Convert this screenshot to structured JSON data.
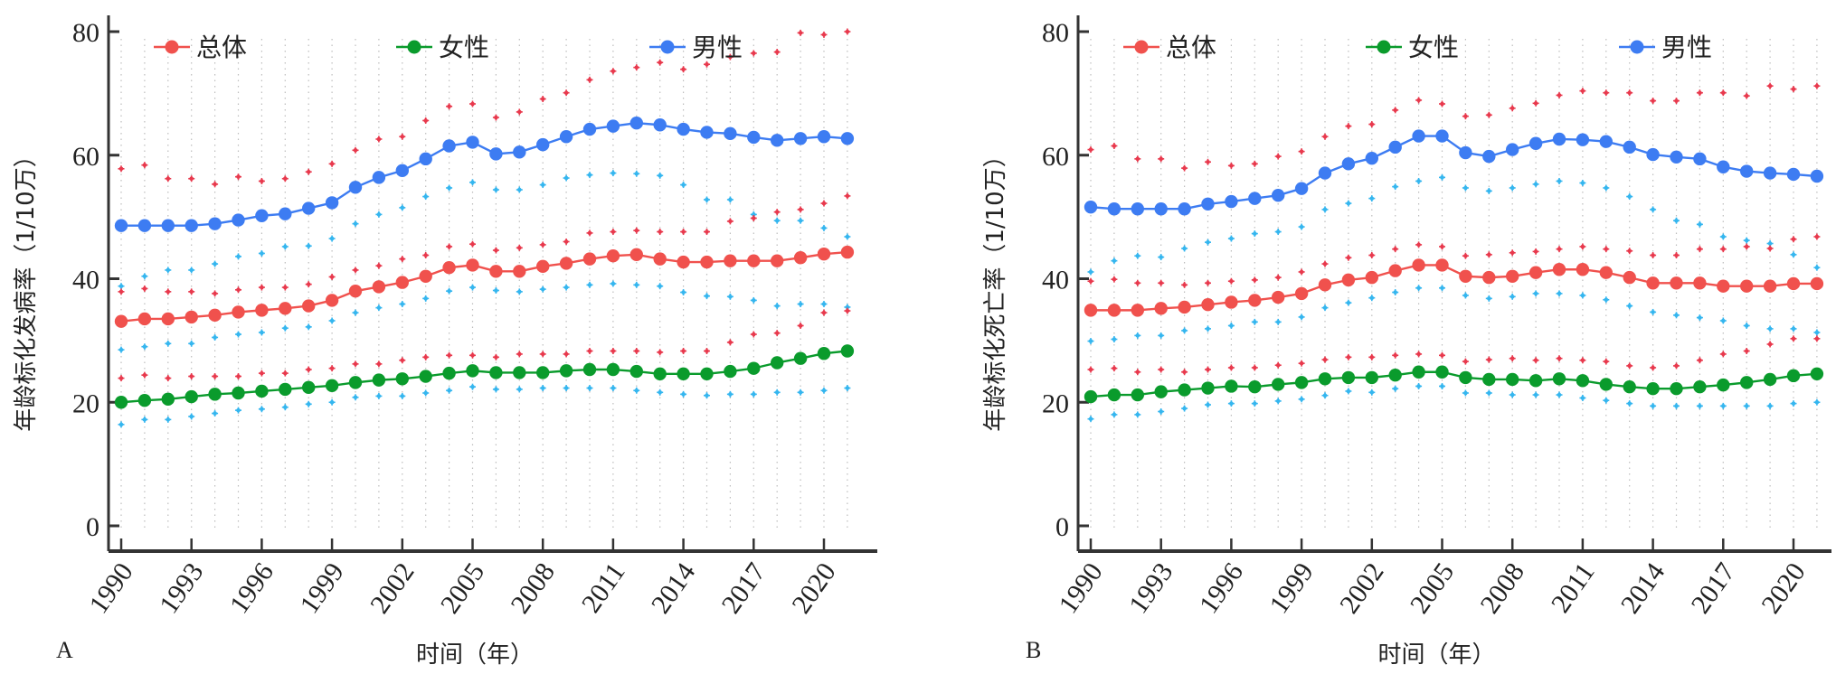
{
  "chart_data": [
    {
      "panel": "A",
      "type": "line",
      "title": "",
      "xlabel": "时间（年）",
      "ylabel": "年龄标化发病率（1/10万）",
      "ylim": [
        0,
        80
      ],
      "yticks": [
        "0",
        "20",
        "40",
        "60",
        "80"
      ],
      "xticks": [
        "1990",
        "1993",
        "1996",
        "1999",
        "2002",
        "2005",
        "2008",
        "2011",
        "2014",
        "2017",
        "2020"
      ],
      "grid": "vertical dotted",
      "legend": "top-left, horizontal",
      "x": [
        1990,
        1991,
        1992,
        1993,
        1994,
        1995,
        1996,
        1997,
        1998,
        1999,
        2000,
        2001,
        2002,
        2003,
        2004,
        2005,
        2006,
        2007,
        2008,
        2009,
        2010,
        2011,
        2012,
        2013,
        2014,
        2015,
        2016,
        2017,
        2018,
        2019,
        2020,
        2021
      ],
      "series": [
        {
          "name": "总体",
          "color": "#f0514d",
          "values": [
            33.1,
            33.5,
            33.5,
            33.8,
            34.1,
            34.6,
            34.9,
            35.2,
            35.6,
            36.5,
            38.0,
            38.7,
            39.4,
            40.4,
            41.8,
            42.2,
            41.2,
            41.2,
            42.0,
            42.5,
            43.2,
            43.7,
            43.9,
            43.2,
            42.7,
            42.7,
            42.9,
            42.9,
            42.9,
            43.4,
            44.0,
            44.3
          ]
        },
        {
          "name": "女性",
          "color": "#0a9b2c",
          "values": [
            20.0,
            20.3,
            20.5,
            20.9,
            21.3,
            21.5,
            21.8,
            22.1,
            22.4,
            22.7,
            23.2,
            23.6,
            23.8,
            24.2,
            24.7,
            25.1,
            24.8,
            24.8,
            24.8,
            25.1,
            25.3,
            25.3,
            25.0,
            24.6,
            24.6,
            24.6,
            25.0,
            25.5,
            26.4,
            27.1,
            27.9,
            28.3
          ]
        },
        {
          "name": "男性",
          "color": "#3d7cf2",
          "values": [
            48.6,
            48.6,
            48.6,
            48.6,
            48.9,
            49.5,
            50.2,
            50.5,
            51.4,
            52.3,
            54.8,
            56.4,
            57.5,
            59.4,
            61.5,
            62.1,
            60.2,
            60.5,
            61.7,
            63.0,
            64.2,
            64.7,
            65.2,
            64.9,
            64.2,
            63.7,
            63.5,
            62.9,
            62.4,
            62.7,
            63.0,
            62.7
          ]
        }
      ],
      "uncertainty_marks": [
        {
          "color": "#e8394d",
          "values": [
            57.8,
            58.4,
            56.2,
            56.2,
            55.3,
            56.5,
            55.8,
            56.2,
            57.3,
            58.6,
            60.8,
            62.6,
            63.0,
            65.6,
            67.9,
            68.3,
            66.1,
            67.0,
            69.1,
            70.1,
            72.2,
            73.6,
            74.2,
            75.0,
            73.9,
            74.7,
            75.9,
            76.5,
            76.7,
            79.8,
            79.5,
            80.0
          ]
        },
        {
          "color": "#35b6ef",
          "values": [
            38.8,
            40.4,
            41.4,
            41.4,
            42.4,
            43.6,
            44.1,
            45.2,
            45.3,
            46.5,
            48.9,
            50.4,
            51.5,
            53.3,
            54.7,
            55.6,
            54.4,
            54.4,
            55.2,
            56.3,
            56.8,
            57.1,
            57.0,
            56.7,
            55.2,
            52.8,
            52.8,
            50.4,
            49.4,
            49.4,
            48.2,
            46.8
          ]
        },
        {
          "color": "#e8394d",
          "values": [
            37.9,
            38.4,
            37.9,
            37.9,
            37.6,
            38.2,
            38.6,
            38.6,
            39.1,
            40.3,
            41.4,
            42.1,
            43.2,
            43.8,
            45.2,
            45.6,
            44.6,
            45.0,
            45.5,
            46.0,
            47.4,
            47.6,
            47.8,
            47.6,
            47.6,
            47.6,
            49.3,
            49.8,
            50.8,
            51.2,
            52.2,
            53.4
          ]
        },
        {
          "color": "#35b6ef",
          "values": [
            28.5,
            29.0,
            29.5,
            29.5,
            30.5,
            31.0,
            31.3,
            32.0,
            32.2,
            33.2,
            34.5,
            35.3,
            35.9,
            36.8,
            38.0,
            38.6,
            38.1,
            37.9,
            38.3,
            38.6,
            39.0,
            39.2,
            39.0,
            38.8,
            37.8,
            37.2,
            37.1,
            36.5,
            35.6,
            35.9,
            35.9,
            35.4
          ]
        },
        {
          "color": "#e8394d",
          "values": [
            23.9,
            24.4,
            23.9,
            24.2,
            24.2,
            24.2,
            24.7,
            24.7,
            25.3,
            25.5,
            26.2,
            26.2,
            26.8,
            27.3,
            27.6,
            27.6,
            27.3,
            27.8,
            27.8,
            27.8,
            28.3,
            28.3,
            28.3,
            28.1,
            28.3,
            28.3,
            29.7,
            31.0,
            31.2,
            32.4,
            34.5,
            34.8
          ]
        },
        {
          "color": "#35b6ef",
          "values": [
            16.4,
            17.2,
            17.2,
            17.7,
            18.2,
            18.7,
            18.9,
            19.2,
            19.7,
            20.0,
            20.8,
            21.0,
            21.0,
            21.5,
            21.9,
            22.5,
            22.1,
            22.1,
            22.3,
            22.3,
            22.3,
            22.3,
            21.9,
            21.6,
            21.3,
            21.1,
            21.3,
            21.3,
            21.6,
            21.6,
            21.9,
            22.3
          ]
        }
      ]
    },
    {
      "panel": "B",
      "type": "line",
      "title": "",
      "xlabel": "时间（年）",
      "ylabel": "年龄标化死亡率（1/10万）",
      "ylim": [
        0,
        80
      ],
      "yticks": [
        "0",
        "20",
        "40",
        "60",
        "80"
      ],
      "xticks": [
        "1990",
        "1993",
        "1996",
        "1999",
        "2002",
        "2005",
        "2008",
        "2011",
        "2014",
        "2017",
        "2020"
      ],
      "grid": "vertical dotted",
      "legend": "top-left, horizontal",
      "x": [
        1990,
        1991,
        1992,
        1993,
        1994,
        1995,
        1996,
        1997,
        1998,
        1999,
        2000,
        2001,
        2002,
        2003,
        2004,
        2005,
        2006,
        2007,
        2008,
        2009,
        2010,
        2011,
        2012,
        2013,
        2014,
        2015,
        2016,
        2017,
        2018,
        2019,
        2020,
        2021
      ],
      "series": [
        {
          "name": "总体",
          "color": "#f0514d",
          "values": [
            34.9,
            34.9,
            34.9,
            35.2,
            35.4,
            35.8,
            36.2,
            36.5,
            37.0,
            37.6,
            39.0,
            39.8,
            40.2,
            41.3,
            42.2,
            42.2,
            40.4,
            40.2,
            40.4,
            41.0,
            41.5,
            41.5,
            41.0,
            40.2,
            39.3,
            39.3,
            39.3,
            38.8,
            38.8,
            38.8,
            39.2,
            39.2
          ]
        },
        {
          "name": "女性",
          "color": "#0a9b2c",
          "values": [
            20.9,
            21.2,
            21.2,
            21.7,
            22.0,
            22.3,
            22.6,
            22.5,
            22.9,
            23.2,
            23.8,
            24.0,
            24.0,
            24.4,
            24.9,
            24.9,
            24.0,
            23.7,
            23.7,
            23.5,
            23.8,
            23.5,
            22.9,
            22.5,
            22.2,
            22.2,
            22.5,
            22.8,
            23.2,
            23.7,
            24.3,
            24.6
          ]
        },
        {
          "name": "男性",
          "color": "#3d7cf2",
          "values": [
            51.6,
            51.3,
            51.3,
            51.3,
            51.3,
            52.1,
            52.5,
            53.0,
            53.5,
            54.6,
            57.1,
            58.6,
            59.5,
            61.3,
            63.1,
            63.1,
            60.4,
            59.8,
            60.9,
            61.9,
            62.6,
            62.5,
            62.2,
            61.3,
            60.1,
            59.7,
            59.4,
            58.1,
            57.4,
            57.1,
            56.9,
            56.6
          ]
        }
      ],
      "uncertainty_marks": [
        {
          "color": "#e8394d",
          "values": [
            60.9,
            61.5,
            59.4,
            59.4,
            57.9,
            58.9,
            58.3,
            58.6,
            59.8,
            60.6,
            63.0,
            64.7,
            65.0,
            67.3,
            68.9,
            68.3,
            66.3,
            66.5,
            67.6,
            68.4,
            69.7,
            70.4,
            70.1,
            70.1,
            68.8,
            68.8,
            70.1,
            70.1,
            69.6,
            71.2,
            70.7,
            71.2
          ]
        },
        {
          "color": "#35b6ef",
          "values": [
            41.1,
            42.9,
            43.7,
            43.5,
            44.9,
            45.9,
            46.5,
            47.3,
            47.6,
            48.4,
            51.2,
            52.2,
            53.0,
            54.9,
            55.8,
            56.4,
            54.7,
            54.2,
            54.7,
            55.3,
            55.8,
            55.5,
            54.7,
            53.3,
            51.2,
            49.4,
            48.8,
            46.8,
            46.2,
            45.7,
            43.9,
            41.8
          ]
        },
        {
          "color": "#e8394d",
          "values": [
            39.6,
            39.9,
            39.3,
            39.3,
            39.0,
            39.3,
            39.6,
            39.8,
            40.2,
            41.1,
            42.4,
            43.4,
            43.8,
            44.8,
            45.5,
            45.2,
            43.7,
            43.9,
            44.2,
            44.4,
            44.8,
            45.2,
            44.8,
            44.5,
            43.8,
            43.8,
            44.8,
            44.8,
            45.2,
            44.9,
            46.4,
            46.8
          ]
        },
        {
          "color": "#35b6ef",
          "values": [
            29.9,
            30.2,
            30.8,
            30.8,
            31.6,
            31.9,
            32.4,
            33.0,
            33.0,
            33.8,
            35.3,
            36.1,
            36.9,
            37.8,
            38.5,
            38.5,
            37.3,
            36.8,
            37.1,
            37.6,
            37.6,
            37.3,
            36.6,
            35.6,
            34.6,
            34.1,
            33.7,
            33.2,
            32.4,
            31.9,
            31.9,
            31.3
          ]
        },
        {
          "color": "#e8394d",
          "values": [
            25.3,
            25.5,
            24.9,
            25.3,
            24.9,
            25.3,
            25.6,
            25.6,
            26.0,
            26.3,
            26.9,
            27.3,
            27.3,
            27.6,
            27.8,
            27.6,
            26.6,
            26.9,
            27.1,
            26.8,
            27.1,
            26.8,
            26.6,
            25.9,
            25.6,
            25.9,
            26.8,
            27.8,
            28.3,
            29.4,
            30.3,
            30.3
          ]
        },
        {
          "color": "#35b6ef",
          "values": [
            17.3,
            18.0,
            18.0,
            18.5,
            19.0,
            19.6,
            19.8,
            19.8,
            20.2,
            20.5,
            21.1,
            21.8,
            21.6,
            22.2,
            22.6,
            22.6,
            21.5,
            21.5,
            21.2,
            21.2,
            21.2,
            20.7,
            20.3,
            19.8,
            19.4,
            19.4,
            19.4,
            19.4,
            19.4,
            19.4,
            19.8,
            20.0
          ]
        }
      ]
    }
  ],
  "panels": [
    {
      "label": "A",
      "ylabel": "年龄标化发病率（1/10万）",
      "xlabel": "时间（年）",
      "legend": [
        {
          "name": "总体",
          "color": "#f0514d"
        },
        {
          "name": "女性",
          "color": "#0a9b2c"
        },
        {
          "name": "男性",
          "color": "#3d7cf2"
        }
      ]
    },
    {
      "label": "B",
      "ylabel": "年龄标化死亡率（1/10万）",
      "xlabel": "时间（年）",
      "legend": [
        {
          "name": "总体",
          "color": "#f0514d"
        },
        {
          "name": "女性",
          "color": "#0a9b2c"
        },
        {
          "name": "男性",
          "color": "#3d7cf2"
        }
      ]
    }
  ]
}
